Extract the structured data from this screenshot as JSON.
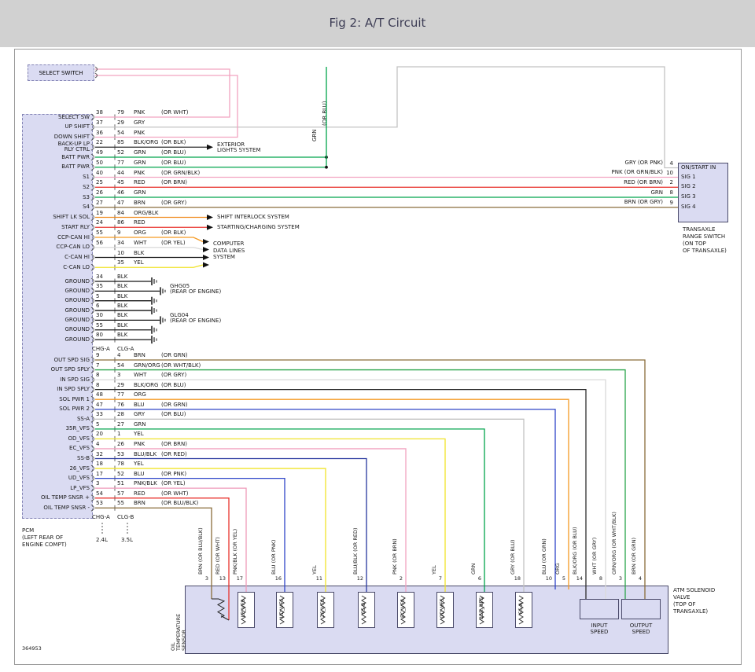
{
  "header": {
    "title": "Fig 2: A/T Circuit"
  },
  "figure_number": "364953",
  "select_switch": {
    "label": "SELECT SWITCH"
  },
  "pcm": {
    "caption": "PCM\n(LEFT REAR OF\nENGINE COMPT)"
  },
  "wire_colors": {
    "PNK": "#f2a3c0",
    "GRY": "#c2c2c2",
    "GRN": "#00a44c",
    "RED": "#e8322d",
    "BRN": "#8a6d3b",
    "ORG": "#f59a23",
    "WHT": "#d9d9d9",
    "BLK": "#141414",
    "YEL": "#f0e32a",
    "BLU": "#2f45c8",
    "BLK/ORG": "#2e2e2e",
    "ORG/BLK": "#f08a1d",
    "GRN/ORG": "#2aa44a",
    "BLU/BLK": "#27379e",
    "PNK/BLK": "#ef9ab8"
  },
  "connector_labels": {
    "top": [
      "CHG-A",
      "CLG-A"
    ],
    "bottom": [
      "CHG-A",
      "CLG-B"
    ],
    "engine_variants": [
      "2.4L",
      "3.5L"
    ]
  },
  "battery_bus": {
    "color_label": "GRN",
    "alt_label": "(OR BLU)"
  },
  "pcm_rows_main": [
    {
      "label": "SELECT SW",
      "p1": "38",
      "p2": "79",
      "color": "PNK",
      "alt": "(OR WHT)",
      "to": "select-a"
    },
    {
      "label": "UP SHIFT",
      "p1": "37",
      "p2": "29",
      "color": "GRY",
      "alt": "",
      "to": "range-onstart"
    },
    {
      "label": "DOWN SHIFT",
      "p1": "36",
      "p2": "54",
      "color": "PNK",
      "alt": "",
      "to": "select-b"
    },
    {
      "label": "BACK-UP LP\nRLY CTRL",
      "p1": "22",
      "p2": "85",
      "color": "BLK/ORG",
      "alt": "(OR BLK)",
      "to": "exterior-lights"
    },
    {
      "label": "BATT PWR",
      "p1": "49",
      "p2": "52",
      "color": "GRN",
      "alt": "(OR BLU)",
      "to": "battery-a"
    },
    {
      "label": "BATT PWR",
      "p1": "50",
      "p2": "77",
      "color": "GRN",
      "alt": "(OR BLU)",
      "to": "battery-b"
    },
    {
      "label": "S1",
      "p1": "40",
      "p2": "44",
      "color": "PNK",
      "alt": "(OR GRN/BLK)",
      "to": "range-sig"
    },
    {
      "label": "S2",
      "p1": "25",
      "p2": "45",
      "color": "RED",
      "alt": "(OR BRN)",
      "to": "range-sig"
    },
    {
      "label": "S3",
      "p1": "26",
      "p2": "46",
      "color": "GRN",
      "alt": "",
      "to": "range-sig"
    },
    {
      "label": "S4",
      "p1": "27",
      "p2": "47",
      "color": "BRN",
      "alt": "(OR GRY)",
      "to": "range-sig"
    },
    {
      "label": "SHIFT LK SOL",
      "p1": "19",
      "p2": "84",
      "color": "ORG/BLK",
      "alt": "",
      "to": "shift-interlock"
    },
    {
      "label": "START RLY",
      "p1": "24",
      "p2": "86",
      "color": "RED",
      "alt": "",
      "to": "starting-charging"
    },
    {
      "label": "CCP-CAN HI",
      "p1": "55",
      "p2": "9",
      "color": "ORG",
      "alt": "(OR BLK)",
      "to": "can"
    },
    {
      "label": "CCP-CAN LO",
      "p1": "56",
      "p2": "34",
      "color": "WHT",
      "alt": "(OR YEL)",
      "to": "can"
    },
    {
      "label": "C-CAN HI",
      "p1": "",
      "p2": "10",
      "color": "BLK",
      "alt": "",
      "to": "can"
    },
    {
      "label": "C-CAN LO",
      "p1": "",
      "p2": "35",
      "color": "YEL",
      "alt": "",
      "to": "can"
    }
  ],
  "pcm_rows_ground": [
    {
      "label": "GROUND",
      "p1": "34",
      "color": "BLK"
    },
    {
      "label": "GROUND",
      "p1": "35",
      "color": "BLK",
      "gnd_label": "GHG05\n(REAR OF ENGINE)"
    },
    {
      "label": "GROUND",
      "p1": "5",
      "color": "BLK"
    },
    {
      "label": "GROUND",
      "p1": "6",
      "color": "BLK"
    },
    {
      "label": "GROUND",
      "p1": "30",
      "color": "BLK",
      "gnd_label": "GLG04\n(REAR OF ENGINE)"
    },
    {
      "label": "GROUND",
      "p1": "55",
      "color": "BLK"
    },
    {
      "label": "GROUND",
      "p1": "80",
      "color": "BLK"
    }
  ],
  "pcm_rows_lower": [
    {
      "label": "OUT SPD SIG",
      "p1": "9",
      "p2": "4",
      "color": "BRN",
      "alt": "(OR GRN)",
      "drop": 15
    },
    {
      "label": "OUT SPD SPLY",
      "p1": "7",
      "p2": "54",
      "color": "GRN/ORG",
      "alt": "(OR WHT/BLK)",
      "drop": 14
    },
    {
      "label": "IN SPD SIG",
      "p1": "8",
      "p2": "3",
      "color": "WHT",
      "alt": "(OR GRY)",
      "drop": 13
    },
    {
      "label": "IN SPD SPLY",
      "p1": "8",
      "p2": "29",
      "color": "BLK/ORG",
      "alt": "(OR BLU)",
      "drop": 12
    },
    {
      "label": "SOL PWR 1",
      "p1": "48",
      "p2": "77",
      "color": "ORG",
      "alt": "",
      "drop": 11
    },
    {
      "label": "SOL PWR 2",
      "p1": "47",
      "p2": "76",
      "color": "BLU",
      "alt": "(OR GRN)",
      "drop": 10
    },
    {
      "label": "SS-A",
      "p1": "33",
      "p2": "28",
      "color": "GRY",
      "alt": "(OR BLU)",
      "drop": 9
    },
    {
      "label": "35R_VFS",
      "p1": "5",
      "p2": "27",
      "color": "GRN",
      "alt": "",
      "drop": 8
    },
    {
      "label": "OD_VFS",
      "p1": "20",
      "p2": "1",
      "color": "YEL",
      "alt": "",
      "drop": 7
    },
    {
      "label": "EC_VFS",
      "p1": "4",
      "p2": "26",
      "color": "PNK",
      "alt": "(OR BRN)",
      "drop": 6
    },
    {
      "label": "SS-B",
      "p1": "32",
      "p2": "53",
      "color": "BLU/BLK",
      "alt": "(OR RED)",
      "drop": 5
    },
    {
      "label": "26_VFS",
      "p1": "18",
      "p2": "78",
      "color": "YEL",
      "alt": "",
      "drop": 4
    },
    {
      "label": "UD_VFS",
      "p1": "17",
      "p2": "52",
      "color": "BLU",
      "alt": "(OR PNK)",
      "drop": 3
    },
    {
      "label": "LP_VFS",
      "p1": "3",
      "p2": "51",
      "color": "PNK/BLK",
      "alt": "(OR YEL)",
      "drop": 2
    },
    {
      "label": "OIL TEMP SNSR +",
      "p1": "54",
      "p2": "57",
      "color": "RED",
      "alt": "(OR WHT)",
      "drop": 1
    },
    {
      "label": "OIL TEMP SNSR -",
      "p1": "53",
      "p2": "55",
      "color": "BRN",
      "alt": "(OR BLU/BLK)",
      "drop": 0
    }
  ],
  "systems": {
    "exterior": "EXTERIOR\nLIGHTS SYSTEM",
    "shift_interlock": "SHIFT INTERLOCK SYSTEM",
    "starting_charging": "STARTING/CHARGING SYSTEM",
    "computer_data": "COMPUTER\nDATA LINES\nSYSTEM"
  },
  "range_switch": {
    "rows": [
      {
        "pin": "4",
        "label": "ON/START IN",
        "wire_label": "GRY (OR PNK)"
      },
      {
        "pin": "10",
        "label": "SIG 1",
        "wire_label": "PNK (OR GRN/BLK)"
      },
      {
        "pin": "2",
        "label": "SIG 2",
        "wire_label": "RED (OR BRN)"
      },
      {
        "pin": "8",
        "label": "SIG 3",
        "wire_label": "GRN"
      },
      {
        "pin": "9",
        "label": "SIG 4",
        "wire_label": "BRN (OR GRY)"
      }
    ],
    "caption": "TRANSAXLE\nRANGE SWITCH\n(ON TOP\nOF TRANSAXLE)"
  },
  "solenoid_box": {
    "caption": "ATM SOLENOID\nVALVE\n(TOP OF\nTRANSAXLE)",
    "sensor_label": "OIL\nTEMPERATURE\nSENSOR",
    "coils": [
      "LP_VFS",
      "UD_VFS",
      "26_VFS",
      "SS-B",
      "EC_VFS",
      "OD_VFS",
      "35R_VFS",
      "SS-A"
    ],
    "speed_boxes": [
      "INPUT\nSPEED",
      "OUTPUT\nSPEED"
    ],
    "drops": [
      {
        "pin": "3",
        "label": "BRN (OR BLU/BLK)",
        "color": "BRN"
      },
      {
        "pin": "13",
        "label": "RED (OR WHT)",
        "color": "RED"
      },
      {
        "pin": "17",
        "label": "PNK/BLK (OR YEL)",
        "color": "PNK/BLK"
      },
      {
        "pin": "16",
        "label": "BLU (OR PNK)",
        "color": "BLU"
      },
      {
        "pin": "11",
        "label": "YEL",
        "color": "YEL"
      },
      {
        "pin": "12",
        "label": "BLU/BLK (OR RED)",
        "color": "BLU/BLK"
      },
      {
        "pin": "2",
        "label": "PNK (OR BRN)",
        "color": "PNK"
      },
      {
        "pin": "7",
        "label": "YEL",
        "color": "YEL"
      },
      {
        "pin": "6",
        "label": "GRN",
        "color": "GRN"
      },
      {
        "pin": "18",
        "label": "GRY (OR BLU)",
        "color": "GRY"
      },
      {
        "pin": "10",
        "label": "BLU (OR GRN)",
        "color": "BLU"
      },
      {
        "pin": "5",
        "label": "ORG",
        "color": "ORG"
      },
      {
        "pin": "14",
        "label": "BLK/ORG (OR BLU)",
        "color": "BLK/ORG"
      },
      {
        "pin": "8",
        "label": "WHT (OR GRY)",
        "color": "WHT"
      },
      {
        "pin": "3",
        "label": "GRN/ORG (OR WHT/BLK)",
        "color": "GRN/ORG"
      },
      {
        "pin": "4",
        "label": "BRN (OR GRN)",
        "color": "BRN"
      }
    ]
  }
}
